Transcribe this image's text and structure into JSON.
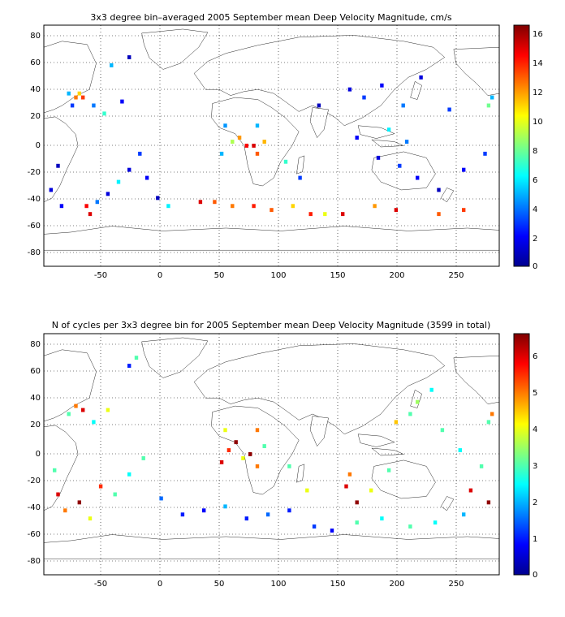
{
  "chart_data": [
    {
      "type": "heatmap",
      "title": "3x3 degree bin–averaged 2005 September mean Deep Velocity Magnitude, cm/s",
      "xlabel": "",
      "ylabel": "",
      "xlim": [
        -92,
        292
      ],
      "ylim": [
        -90,
        90
      ],
      "x_ticks": [
        -50,
        0,
        50,
        100,
        150,
        200,
        250
      ],
      "y_ticks": [
        -80,
        -60,
        -40,
        -20,
        0,
        20,
        40,
        60,
        80
      ],
      "grid": "dotted",
      "colorbar": {
        "min": 0,
        "max": 16.5,
        "ticks": [
          0,
          2,
          4,
          6,
          8,
          10,
          12,
          14,
          16
        ]
      },
      "bin_size_deg": 3,
      "samples": [
        [
          -65,
          36,
          12.5
        ],
        [
          -62,
          39,
          11
        ],
        [
          -59,
          36,
          13.5
        ],
        [
          -71,
          39,
          5
        ],
        [
          -68,
          30,
          3
        ],
        [
          -50,
          30,
          4
        ],
        [
          -41,
          24,
          7
        ],
        [
          -26,
          33,
          2
        ],
        [
          -35,
          60,
          5
        ],
        [
          -20,
          66,
          1
        ],
        [
          -80,
          -15,
          1
        ],
        [
          -86,
          -33,
          1.5
        ],
        [
          -77,
          -45,
          2
        ],
        [
          -56,
          -45,
          14.5
        ],
        [
          -53,
          -51,
          15
        ],
        [
          -47,
          -42,
          4
        ],
        [
          -38,
          -36,
          1.5
        ],
        [
          -29,
          -27,
          6
        ],
        [
          -20,
          -18,
          1.5
        ],
        [
          -11,
          -6,
          3
        ],
        [
          -5,
          -24,
          2
        ],
        [
          4,
          -39,
          1
        ],
        [
          13,
          -45,
          6
        ],
        [
          40,
          -42,
          15
        ],
        [
          52,
          -42,
          13
        ],
        [
          67,
          -45,
          12.5
        ],
        [
          85,
          -45,
          14
        ],
        [
          100,
          -48,
          13
        ],
        [
          118,
          -45,
          11
        ],
        [
          133,
          -51,
          14
        ],
        [
          145,
          -51,
          10
        ],
        [
          160,
          -51,
          15
        ],
        [
          187,
          -45,
          12
        ],
        [
          205,
          -48,
          15
        ],
        [
          241,
          -51,
          13
        ],
        [
          262,
          -48,
          13.5
        ],
        [
          58,
          -6,
          5
        ],
        [
          67,
          3,
          9
        ],
        [
          73,
          6,
          12
        ],
        [
          79,
          0,
          14.5
        ],
        [
          85,
          0,
          15
        ],
        [
          88,
          -6,
          13
        ],
        [
          94,
          3,
          11.5
        ],
        [
          61,
          15,
          4.5
        ],
        [
          88,
          15,
          5
        ],
        [
          112,
          -12,
          7
        ],
        [
          124,
          -24,
          3
        ],
        [
          140,
          30,
          1
        ],
        [
          166,
          42,
          1.5
        ],
        [
          178,
          36,
          3
        ],
        [
          193,
          45,
          2
        ],
        [
          211,
          30,
          4
        ],
        [
          226,
          51,
          1.5
        ],
        [
          250,
          27,
          3
        ],
        [
          172,
          6,
          2
        ],
        [
          190,
          -9,
          1.5
        ],
        [
          208,
          -15,
          3
        ],
        [
          223,
          -24,
          2
        ],
        [
          241,
          -33,
          1
        ],
        [
          262,
          -18,
          2
        ],
        [
          280,
          -6,
          3
        ],
        [
          283,
          30,
          8
        ],
        [
          286,
          36,
          5
        ],
        [
          199,
          12,
          6
        ],
        [
          214,
          3,
          4
        ]
      ]
    },
    {
      "type": "heatmap",
      "title": "N of cycles per 3x3 degree bin for 2005 September mean Deep Velocity Magnitude (3599 in total)",
      "xlabel": "",
      "ylabel": "",
      "xlim": [
        -92,
        292
      ],
      "ylim": [
        -90,
        90
      ],
      "x_ticks": [
        -50,
        0,
        50,
        100,
        150,
        200,
        250
      ],
      "y_ticks": [
        -80,
        -60,
        -40,
        -20,
        0,
        20,
        40,
        60,
        80
      ],
      "grid": "dotted",
      "colorbar": {
        "min": 0,
        "max": 6.6,
        "ticks": [
          0,
          1,
          2,
          3,
          4,
          5,
          6
        ]
      },
      "bin_size_deg": 3,
      "samples": [
        [
          -65,
          36,
          5
        ],
        [
          -59,
          33,
          6
        ],
        [
          -71,
          30,
          3
        ],
        [
          -50,
          24,
          2.5
        ],
        [
          -38,
          33,
          4
        ],
        [
          -20,
          66,
          1
        ],
        [
          -14,
          72,
          3
        ],
        [
          -83,
          -12,
          3
        ],
        [
          -80,
          -30,
          6
        ],
        [
          -74,
          -42,
          5
        ],
        [
          -62,
          -36,
          6.5
        ],
        [
          -53,
          -48,
          4
        ],
        [
          -44,
          -24,
          5.5
        ],
        [
          -32,
          -30,
          3
        ],
        [
          -20,
          -15,
          2.5
        ],
        [
          -8,
          -3,
          3
        ],
        [
          7,
          -33,
          1.5
        ],
        [
          25,
          -45,
          1
        ],
        [
          43,
          -42,
          0.8
        ],
        [
          61,
          -39,
          2
        ],
        [
          79,
          -48,
          1
        ],
        [
          97,
          -45,
          1.5
        ],
        [
          115,
          -42,
          1
        ],
        [
          136,
          -54,
          1.2
        ],
        [
          151,
          -57,
          0.8
        ],
        [
          172,
          -51,
          3
        ],
        [
          193,
          -48,
          2.5
        ],
        [
          217,
          -54,
          3
        ],
        [
          238,
          -51,
          2.5
        ],
        [
          262,
          -45,
          2
        ],
        [
          58,
          -6,
          6
        ],
        [
          64,
          3,
          5.5
        ],
        [
          70,
          9,
          6.5
        ],
        [
          76,
          -3,
          4
        ],
        [
          82,
          0,
          6.5
        ],
        [
          88,
          -9,
          5
        ],
        [
          94,
          6,
          3
        ],
        [
          61,
          18,
          4
        ],
        [
          88,
          18,
          5
        ],
        [
          115,
          -9,
          3
        ],
        [
          130,
          -27,
          4
        ],
        [
          163,
          -24,
          6
        ],
        [
          166,
          -15,
          5
        ],
        [
          172,
          -36,
          6.5
        ],
        [
          184,
          -27,
          4
        ],
        [
          199,
          -12,
          3
        ],
        [
          205,
          24,
          4.5
        ],
        [
          217,
          30,
          3
        ],
        [
          223,
          39,
          3.5
        ],
        [
          235,
          48,
          2.5
        ],
        [
          244,
          18,
          3
        ],
        [
          259,
          3,
          2.5
        ],
        [
          268,
          -27,
          6
        ],
        [
          277,
          -9,
          3
        ],
        [
          283,
          -36,
          6.5
        ],
        [
          286,
          30,
          5
        ],
        [
          283,
          24,
          3
        ]
      ]
    }
  ]
}
